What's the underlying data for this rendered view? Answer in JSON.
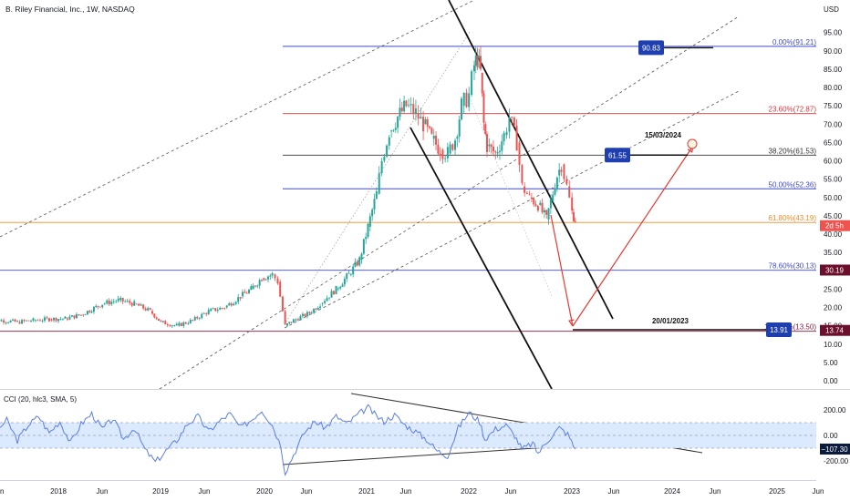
{
  "header": {
    "title": "B. Riley Financial, Inc., 1W, NASDAQ",
    "currency": "USD"
  },
  "chart_data": [
    {
      "type": "candlestick",
      "title": "B. Riley Financial, Inc., 1W, NASDAQ",
      "y_axis_unit": "USD",
      "y_ticks": [
        "95.00",
        "90.00",
        "85.00",
        "80.00",
        "75.00",
        "70.00",
        "65.00",
        "60.00",
        "55.00",
        "50.00",
        "45.00",
        "40.00",
        "35.00",
        "30.00",
        "25.00",
        "20.00",
        "15.00",
        "10.00",
        "5.00",
        "0.00"
      ],
      "x_ticks": [
        "Jun",
        "2018",
        "Jun",
        "2019",
        "Jun",
        "2020",
        "Jun",
        "2021",
        "Jun",
        "2022",
        "Jun",
        "2023",
        "Jun",
        "2024",
        "Jun",
        "2025",
        "Jun"
      ],
      "ylim": [
        0,
        97
      ],
      "colors": {
        "up": "#26a69a",
        "down": "#ef5350"
      },
      "price_path": [
        [
          2017.4,
          17
        ],
        [
          2017.55,
          16.5
        ],
        [
          2017.7,
          16
        ],
        [
          2017.85,
          16.5
        ],
        [
          2018.0,
          16.8
        ],
        [
          2018.15,
          17
        ],
        [
          2018.3,
          18
        ],
        [
          2018.5,
          21
        ],
        [
          2018.65,
          22
        ],
        [
          2018.8,
          21
        ],
        [
          2018.95,
          19
        ],
        [
          2019.05,
          16
        ],
        [
          2019.2,
          15
        ],
        [
          2019.35,
          16.5
        ],
        [
          2019.5,
          19
        ],
        [
          2019.65,
          20
        ],
        [
          2019.8,
          23
        ],
        [
          2019.9,
          25
        ],
        [
          2020.0,
          28
        ],
        [
          2020.1,
          29
        ],
        [
          2020.15,
          27
        ],
        [
          2020.22,
          15
        ],
        [
          2020.3,
          16.5
        ],
        [
          2020.45,
          18.5
        ],
        [
          2020.55,
          21
        ],
        [
          2020.7,
          25
        ],
        [
          2020.82,
          29
        ],
        [
          2020.92,
          33
        ],
        [
          2021.0,
          42
        ],
        [
          2021.08,
          51
        ],
        [
          2021.13,
          60
        ],
        [
          2021.2,
          68
        ],
        [
          2021.28,
          72
        ],
        [
          2021.36,
          75
        ],
        [
          2021.45,
          73
        ],
        [
          2021.52,
          70
        ],
        [
          2021.6,
          66
        ],
        [
          2021.68,
          63
        ],
        [
          2021.75,
          62
        ],
        [
          2021.82,
          66
        ],
        [
          2021.88,
          75
        ],
        [
          2021.95,
          78
        ],
        [
          2022.0,
          86
        ],
        [
          2022.03,
          88
        ],
        [
          2022.06,
          84
        ],
        [
          2022.09,
          70
        ],
        [
          2022.12,
          64
        ],
        [
          2022.2,
          62
        ],
        [
          2022.28,
          67
        ],
        [
          2022.33,
          72
        ],
        [
          2022.4,
          65
        ],
        [
          2022.45,
          53
        ],
        [
          2022.52,
          50
        ],
        [
          2022.6,
          48
        ],
        [
          2022.68,
          44
        ],
        [
          2022.72,
          49
        ],
        [
          2022.78,
          56
        ],
        [
          2022.82,
          59
        ],
        [
          2022.87,
          53
        ],
        [
          2022.92,
          46
        ],
        [
          2022.95,
          44
        ]
      ],
      "horizontal_levels": [
        {
          "label": "0.00%(91.21)",
          "value": 91.21,
          "color": "#3f48cc"
        },
        {
          "label": "23.60%(72.87)",
          "value": 72.87,
          "color": "#d63638"
        },
        {
          "label": "38.20%(61.53)",
          "value": 61.53,
          "color": "#333333"
        },
        {
          "label": "50.00%(52.36)",
          "value": 52.36,
          "color": "#3f48cc"
        },
        {
          "label": "61.80%(43.19)",
          "value": 43.19,
          "color": "#f08a24"
        },
        {
          "label": "78.60%(30.13)",
          "value": 30.13,
          "color": "#3f48cc"
        },
        {
          "label": "100.00%(13.50)",
          "value": 13.5,
          "color": "#8b1a3c"
        }
      ],
      "price_labels": [
        {
          "text": "90.83",
          "value": 90.83,
          "color": "#1f3fb0"
        },
        {
          "text": "61.55",
          "value": 61.55,
          "color": "#1f3fb0"
        },
        {
          "text": "13.91",
          "value": 13.91,
          "color": "#1f3fb0"
        }
      ],
      "axis_badges": [
        {
          "text": "2d 5h",
          "value": 42.3,
          "color": "#ef5350"
        },
        {
          "text": "30.19",
          "value": 30.19,
          "color": "#6b0f2c"
        },
        {
          "text": "13.74",
          "value": 13.74,
          "color": "#6b0f2c"
        }
      ],
      "annotations": [
        {
          "text": "15/03/2024",
          "x": 2024.0,
          "y": 62.4
        },
        {
          "text": "20/01/2023",
          "x": 2023.0,
          "y": 14.8
        }
      ]
    },
    {
      "type": "line",
      "title": "CCI (20, hlc3, SMA, 5)",
      "y_ticks": [
        "200.00",
        "0.00",
        "-200.00"
      ],
      "ylim": [
        -320,
        320
      ],
      "band": [
        -100,
        100
      ],
      "last_value_label": "−107.30",
      "colors": {
        "line": "#5b7ee5",
        "band": "#dbeaff",
        "badge": "#0a1b3d"
      },
      "cci_path": [
        [
          2017.4,
          170
        ],
        [
          2017.5,
          30
        ],
        [
          2017.6,
          120
        ],
        [
          2017.7,
          -40
        ],
        [
          2017.8,
          80
        ],
        [
          2017.9,
          150
        ],
        [
          2018.0,
          20
        ],
        [
          2018.1,
          110
        ],
        [
          2018.2,
          -60
        ],
        [
          2018.3,
          90
        ],
        [
          2018.4,
          170
        ],
        [
          2018.5,
          50
        ],
        [
          2018.6,
          130
        ],
        [
          2018.7,
          -30
        ],
        [
          2018.8,
          60
        ],
        [
          2018.9,
          -110
        ],
        [
          2019.0,
          -210
        ],
        [
          2019.1,
          -120
        ],
        [
          2019.2,
          -40
        ],
        [
          2019.3,
          90
        ],
        [
          2019.4,
          150
        ],
        [
          2019.5,
          30
        ],
        [
          2019.6,
          110
        ],
        [
          2019.7,
          170
        ],
        [
          2019.8,
          60
        ],
        [
          2019.9,
          120
        ],
        [
          2020.0,
          200
        ],
        [
          2020.1,
          80
        ],
        [
          2020.18,
          -80
        ],
        [
          2020.22,
          -290
        ],
        [
          2020.3,
          -150
        ],
        [
          2020.4,
          20
        ],
        [
          2020.5,
          110
        ],
        [
          2020.6,
          60
        ],
        [
          2020.7,
          150
        ],
        [
          2020.8,
          90
        ],
        [
          2020.9,
          160
        ],
        [
          2021.0,
          220
        ],
        [
          2021.08,
          150
        ],
        [
          2021.15,
          110
        ],
        [
          2021.25,
          160
        ],
        [
          2021.35,
          80
        ],
        [
          2021.45,
          30
        ],
        [
          2021.55,
          -30
        ],
        [
          2021.65,
          -120
        ],
        [
          2021.75,
          -160
        ],
        [
          2021.85,
          60
        ],
        [
          2021.95,
          180
        ],
        [
          2022.05,
          110
        ],
        [
          2022.1,
          -30
        ],
        [
          2022.2,
          50
        ],
        [
          2022.3,
          80
        ],
        [
          2022.38,
          0
        ],
        [
          2022.45,
          -110
        ],
        [
          2022.55,
          -60
        ],
        [
          2022.6,
          -140
        ],
        [
          2022.7,
          -30
        ],
        [
          2022.8,
          60
        ],
        [
          2022.88,
          10
        ],
        [
          2022.95,
          -107
        ]
      ]
    }
  ]
}
